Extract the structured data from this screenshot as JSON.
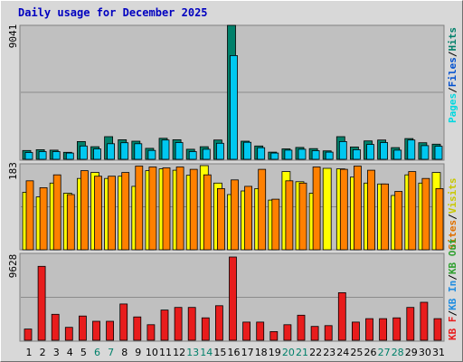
{
  "title": "Daily usage for December 2025",
  "colors": {
    "plot_bg": "#c0c0c0",
    "grid": "#8c8c8c",
    "hits": "#00806a",
    "files": "#00c8f0",
    "pages": "#00e0e8",
    "visits": "#ffff00",
    "sites": "#ff8000",
    "kbin": "#208ce0",
    "kbout": "#30a030",
    "kbf": "#e81c1c",
    "day_normal": "#000000",
    "day_weekend": "#00806a"
  },
  "chart_data": [
    {
      "type": "bar",
      "title": "Daily usage for December 2025",
      "categories": [
        "1",
        "2",
        "3",
        "4",
        "5",
        "6",
        "7",
        "8",
        "9",
        "10",
        "11",
        "12",
        "13",
        "14",
        "15",
        "16",
        "17",
        "18",
        "19",
        "20",
        "21",
        "22",
        "23",
        "24",
        "25",
        "26",
        "27",
        "28",
        "29",
        "30",
        "31"
      ],
      "weekend_days": [
        "6",
        "7",
        "13",
        "14",
        "20",
        "21",
        "27",
        "28"
      ],
      "y_tick_label": "9041",
      "ylim": [
        0,
        9041
      ],
      "legend": [
        {
          "text": "Hits",
          "color": "#00806a"
        },
        {
          "text": "Files",
          "color": "#0050d0"
        },
        {
          "text": "Pages",
          "color": "#00d8e0"
        }
      ],
      "series": [
        {
          "name": "Hits",
          "values": [
            590,
            650,
            620,
            470,
            1200,
            850,
            1530,
            1320,
            1220,
            740,
            1420,
            1320,
            680,
            850,
            1300,
            9041,
            1220,
            900,
            480,
            700,
            800,
            720,
            570,
            1530,
            830,
            1240,
            1300,
            790,
            1400,
            1120,
            1020
          ]
        },
        {
          "name": "Files",
          "values": [
            460,
            520,
            520,
            420,
            900,
            700,
            1050,
            1120,
            1050,
            600,
            1300,
            1130,
            520,
            680,
            1080,
            7000,
            1150,
            780,
            420,
            620,
            680,
            580,
            480,
            1200,
            650,
            1000,
            1130,
            620,
            1300,
            920,
            880
          ]
        }
      ]
    },
    {
      "type": "bar",
      "y_tick_label": "183",
      "ylim": [
        0,
        183
      ],
      "legend": [
        {
          "text": "Visits",
          "color": "#c8c800"
        },
        {
          "text": "Sites",
          "color": "#e07000"
        }
      ],
      "series": [
        {
          "name": "Visits",
          "values": [
            125,
            115,
            145,
            123,
            155,
            168,
            155,
            160,
            138,
            172,
            176,
            173,
            162,
            183,
            145,
            120,
            128,
            133,
            108,
            170,
            148,
            123,
            177,
            176,
            158,
            145,
            143,
            118,
            163,
            145,
            168
          ]
        },
        {
          "name": "Sites",
          "values": [
            150,
            135,
            163,
            120,
            172,
            160,
            160,
            168,
            182,
            180,
            178,
            180,
            175,
            163,
            133,
            152,
            138,
            175,
            110,
            150,
            145,
            180,
            0,
            175,
            182,
            173,
            143,
            127,
            170,
            155,
            133
          ]
        }
      ]
    },
    {
      "type": "bar",
      "y_tick_label": "9628",
      "ylim": [
        0,
        9628
      ],
      "legend": [
        {
          "text": "KB F",
          "color": "#e81c1c"
        },
        {
          "text": "KB Out",
          "color": "#30a030"
        },
        {
          "text": "KB In",
          "color": "#208ce0"
        }
      ],
      "series": [
        {
          "name": "KB F",
          "values": [
            1300,
            8550,
            3000,
            1500,
            2800,
            2200,
            2200,
            4200,
            2700,
            1800,
            3500,
            3800,
            3800,
            2600,
            4000,
            9628,
            2100,
            2100,
            1000,
            1800,
            2900,
            1600,
            1700,
            5500,
            2100,
            2500,
            2500,
            2600,
            3800,
            4400,
            2500
          ]
        }
      ]
    }
  ]
}
